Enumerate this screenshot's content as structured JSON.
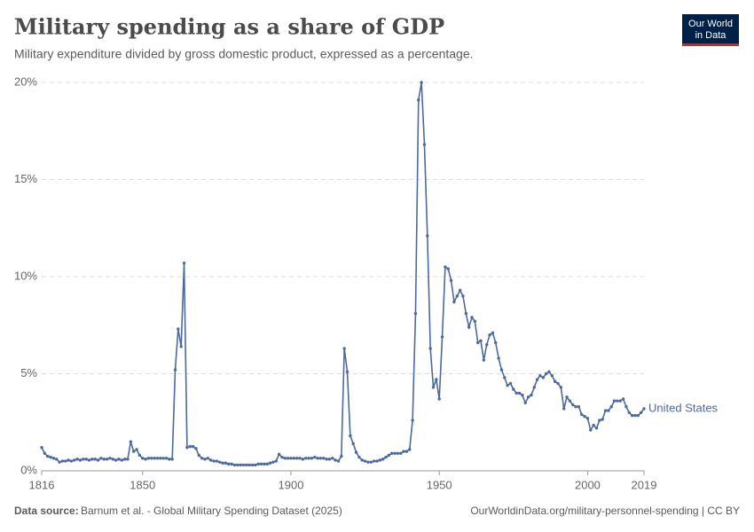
{
  "chart_data": {
    "type": "line",
    "title": "Military spending as a share of GDP",
    "subtitle": "Military expenditure divided by gross domestic product, expressed as a percentage.",
    "logo": [
      "Our World",
      "in Data"
    ],
    "source_label": "Data source:",
    "source": "Barnum et al. - Global Military Spending Dataset (2025)",
    "url": "OurWorldinData.org/military-personnel-spending | CC BY",
    "x": [
      1816,
      1817,
      1818,
      1819,
      1820,
      1821,
      1822,
      1823,
      1824,
      1825,
      1826,
      1827,
      1828,
      1829,
      1830,
      1831,
      1832,
      1833,
      1834,
      1835,
      1836,
      1837,
      1838,
      1839,
      1840,
      1841,
      1842,
      1843,
      1844,
      1845,
      1846,
      1847,
      1848,
      1849,
      1850,
      1851,
      1852,
      1853,
      1854,
      1855,
      1856,
      1857,
      1858,
      1859,
      1860,
      1861,
      1862,
      1863,
      1864,
      1865,
      1866,
      1867,
      1868,
      1869,
      1870,
      1871,
      1872,
      1873,
      1874,
      1875,
      1876,
      1877,
      1878,
      1879,
      1880,
      1881,
      1882,
      1883,
      1884,
      1885,
      1886,
      1887,
      1888,
      1889,
      1890,
      1891,
      1892,
      1893,
      1894,
      1895,
      1896,
      1897,
      1898,
      1899,
      1900,
      1901,
      1902,
      1903,
      1904,
      1905,
      1906,
      1907,
      1908,
      1909,
      1910,
      1911,
      1912,
      1913,
      1914,
      1915,
      1916,
      1917,
      1918,
      1919,
      1920,
      1921,
      1922,
      1923,
      1924,
      1925,
      1926,
      1927,
      1928,
      1929,
      1930,
      1931,
      1932,
      1933,
      1934,
      1935,
      1936,
      1937,
      1938,
      1939,
      1940,
      1941,
      1942,
      1943,
      1944,
      1945,
      1946,
      1947,
      1948,
      1949,
      1950,
      1951,
      1952,
      1953,
      1954,
      1955,
      1956,
      1957,
      1958,
      1959,
      1960,
      1961,
      1962,
      1963,
      1964,
      1965,
      1966,
      1967,
      1968,
      1969,
      1970,
      1971,
      1972,
      1973,
      1974,
      1975,
      1976,
      1977,
      1978,
      1979,
      1980,
      1981,
      1982,
      1983,
      1984,
      1985,
      1986,
      1987,
      1988,
      1989,
      1990,
      1991,
      1992,
      1993,
      1994,
      1995,
      1996,
      1997,
      1998,
      1999,
      2000,
      2001,
      2002,
      2003,
      2004,
      2005,
      2006,
      2007,
      2008,
      2009,
      2010,
      2011,
      2012,
      2013,
      2014,
      2015,
      2016,
      2017,
      2018,
      2019
    ],
    "series": [
      {
        "name": "United States",
        "color": "#4c6a9c",
        "values": [
          1.2,
          0.9,
          0.75,
          0.7,
          0.65,
          0.6,
          0.45,
          0.5,
          0.5,
          0.55,
          0.5,
          0.55,
          0.6,
          0.55,
          0.6,
          0.6,
          0.55,
          0.6,
          0.6,
          0.55,
          0.65,
          0.6,
          0.6,
          0.65,
          0.6,
          0.55,
          0.6,
          0.55,
          0.6,
          0.6,
          1.5,
          1.0,
          1.1,
          0.8,
          0.65,
          0.6,
          0.65,
          0.65,
          0.65,
          0.65,
          0.65,
          0.65,
          0.65,
          0.6,
          0.6,
          5.2,
          7.3,
          6.4,
          10.7,
          1.2,
          1.25,
          1.25,
          1.15,
          0.8,
          0.65,
          0.6,
          0.65,
          0.55,
          0.5,
          0.5,
          0.45,
          0.4,
          0.4,
          0.35,
          0.35,
          0.3,
          0.3,
          0.3,
          0.3,
          0.3,
          0.3,
          0.3,
          0.3,
          0.35,
          0.35,
          0.35,
          0.35,
          0.4,
          0.45,
          0.5,
          0.85,
          0.7,
          0.65,
          0.65,
          0.65,
          0.65,
          0.65,
          0.65,
          0.6,
          0.65,
          0.65,
          0.65,
          0.7,
          0.65,
          0.65,
          0.65,
          0.6,
          0.6,
          0.65,
          0.55,
          0.5,
          0.75,
          6.3,
          5.1,
          1.8,
          1.4,
          0.95,
          0.7,
          0.55,
          0.5,
          0.45,
          0.45,
          0.5,
          0.5,
          0.55,
          0.6,
          0.7,
          0.8,
          0.9,
          0.9,
          0.9,
          0.9,
          1.0,
          1.0,
          1.1,
          2.6,
          8.1,
          19.1,
          20.0,
          16.8,
          12.1,
          6.3,
          4.3,
          4.7,
          3.7,
          6.9,
          10.5,
          10.4,
          9.8,
          8.7,
          9.0,
          9.3,
          9.0,
          8.1,
          7.4,
          7.9,
          7.7,
          6.6,
          6.7,
          5.7,
          6.5,
          7.0,
          7.1,
          6.6,
          5.8,
          5.2,
          4.8,
          4.4,
          4.5,
          4.2,
          4.0,
          4.0,
          3.9,
          3.5,
          3.8,
          3.9,
          4.3,
          4.7,
          4.9,
          4.8,
          5.0,
          5.1,
          4.9,
          4.6,
          4.5,
          4.3,
          3.2,
          3.8,
          3.6,
          3.4,
          3.3,
          3.3,
          2.9,
          2.8,
          2.7,
          2.1,
          2.35,
          2.2,
          2.6,
          2.65,
          3.1,
          3.1,
          3.3,
          3.6,
          3.6,
          3.6,
          3.7,
          3.3,
          3.0,
          2.85,
          2.85,
          2.85,
          3.0,
          3.2
        ]
      }
    ],
    "xlim": [
      1816,
      2019
    ],
    "xticks": [
      1816,
      1850,
      1900,
      1950,
      2000,
      2019
    ],
    "ylim": [
      0,
      20
    ],
    "yticks": [
      {
        "value": 0,
        "label": "0%"
      },
      {
        "value": 5,
        "label": "5%"
      },
      {
        "value": 10,
        "label": "10%"
      },
      {
        "value": 15,
        "label": "15%"
      },
      {
        "value": 20,
        "label": "20%"
      }
    ],
    "grid": true
  }
}
